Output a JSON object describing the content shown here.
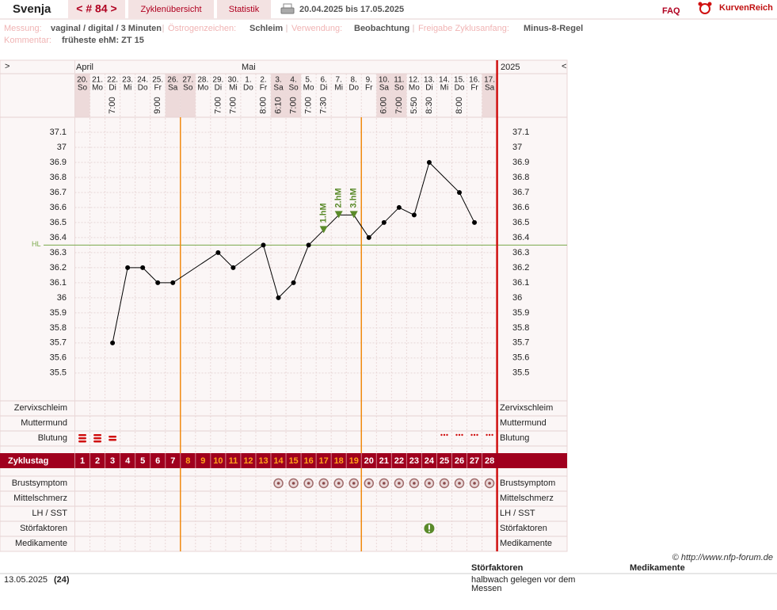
{
  "header": {
    "name": "Svenja",
    "cycle": "< # 84 >",
    "tabs": [
      "Zyklenübersicht",
      "Statistik"
    ],
    "range": "20.04.2025 bis 17.05.2025",
    "faq": "FAQ",
    "logo": "KurvenReich"
  },
  "info": {
    "fields": [
      {
        "label": "Messung:",
        "value": "vaginal / digital / 3 Minuten"
      },
      {
        "label": "Östrogenzeichen:",
        "value": "Schleim"
      },
      {
        "label": "Verwendung:",
        "value": "Beobachtung"
      },
      {
        "label": "Freigabe Zyklusanfang:",
        "value": "Minus-8-Regel"
      }
    ],
    "comment": {
      "label": "Kommentar:",
      "value": "früheste ehM: ZT 15"
    }
  },
  "chart_data": {
    "type": "line",
    "nav_left": ">",
    "nav_right": "<",
    "months": [
      "April",
      "Mai"
    ],
    "year": "2025",
    "days": [
      "20.",
      "21.",
      "22.",
      "23.",
      "24.",
      "25.",
      "26.",
      "27.",
      "28.",
      "29.",
      "30.",
      "1.",
      "2.",
      "3.",
      "4.",
      "5.",
      "6.",
      "7.",
      "8.",
      "9.",
      "10.",
      "11.",
      "12.",
      "13.",
      "14.",
      "15.",
      "16.",
      "17."
    ],
    "weekdays": [
      "So",
      "Mo",
      "Di",
      "Mi",
      "Do",
      "Fr",
      "Sa",
      "So",
      "Mo",
      "Di",
      "Mi",
      "Do",
      "Fr",
      "Sa",
      "So",
      "Mo",
      "Di",
      "Mi",
      "Do",
      "Fr",
      "Sa",
      "So",
      "Mo",
      "Di",
      "Mi",
      "Do",
      "Fr",
      "Sa"
    ],
    "times": [
      null,
      null,
      "7:00",
      null,
      null,
      "9:00",
      null,
      null,
      null,
      "7:00",
      "7:00",
      null,
      "8:00",
      "6:10",
      "7:00",
      "7:00",
      "7:30",
      null,
      null,
      null,
      "6:00",
      "7:00",
      "5:50",
      "8:30",
      null,
      "8:00",
      null,
      null
    ],
    "x": [
      3,
      4,
      5,
      6,
      7,
      10,
      11,
      13,
      14,
      15,
      16,
      17,
      18,
      19,
      20,
      21,
      22,
      23,
      24,
      26,
      27
    ],
    "values": [
      35.7,
      36.2,
      36.2,
      36.1,
      36.1,
      36.3,
      36.2,
      36.35,
      36.0,
      36.1,
      36.35,
      36.45,
      36.55,
      36.55,
      36.4,
      36.5,
      36.6,
      36.55,
      36.9,
      36.7,
      36.5
    ],
    "color": "#000000",
    "marker_color": "#5a8a2a",
    "xlim": [
      0.5,
      28.5
    ],
    "ylim": [
      35.32,
      37.2
    ],
    "yticks": [
      37.1,
      37,
      36.9,
      36.8,
      36.7,
      36.6,
      36.5,
      36.4,
      36.3,
      36.2,
      36.1,
      36,
      35.9,
      35.8,
      35.7,
      35.6,
      35.5
    ],
    "grid": true,
    "hl": {
      "label": "HL",
      "value": 36.35,
      "color": "#7aa84a"
    },
    "annotations": [
      {
        "x": 17,
        "label": "1.hM"
      },
      {
        "x": 18,
        "label": "2.hM"
      },
      {
        "x": 19,
        "label": "3.hM"
      }
    ],
    "upper_rows": [
      {
        "label": "Zervixschleim",
        "color": "#e8820c"
      },
      {
        "label": "Muttermund",
        "color": "#5a6fc8"
      },
      {
        "label": "Blutung",
        "color": "#222222"
      }
    ],
    "cycle_day_label": "Zyklustag",
    "cycle_days": [
      1,
      2,
      3,
      4,
      5,
      6,
      7,
      8,
      9,
      10,
      11,
      12,
      13,
      14,
      15,
      16,
      17,
      18,
      19,
      20,
      21,
      22,
      23,
      24,
      25,
      26,
      27,
      28
    ],
    "lower_rows": [
      "Brustsymptom",
      "Mittelschmerz",
      "LH / SST",
      "Störfaktoren",
      "Medikamente"
    ]
  },
  "footer": {
    "copyright": "© http://www.nfp-forum.de",
    "headers": [
      "Störfaktoren",
      "Medikamente"
    ],
    "date": "13.05.2025",
    "day": "(24)",
    "note": [
      "halbwach gelegen vor dem",
      "Messen"
    ]
  }
}
